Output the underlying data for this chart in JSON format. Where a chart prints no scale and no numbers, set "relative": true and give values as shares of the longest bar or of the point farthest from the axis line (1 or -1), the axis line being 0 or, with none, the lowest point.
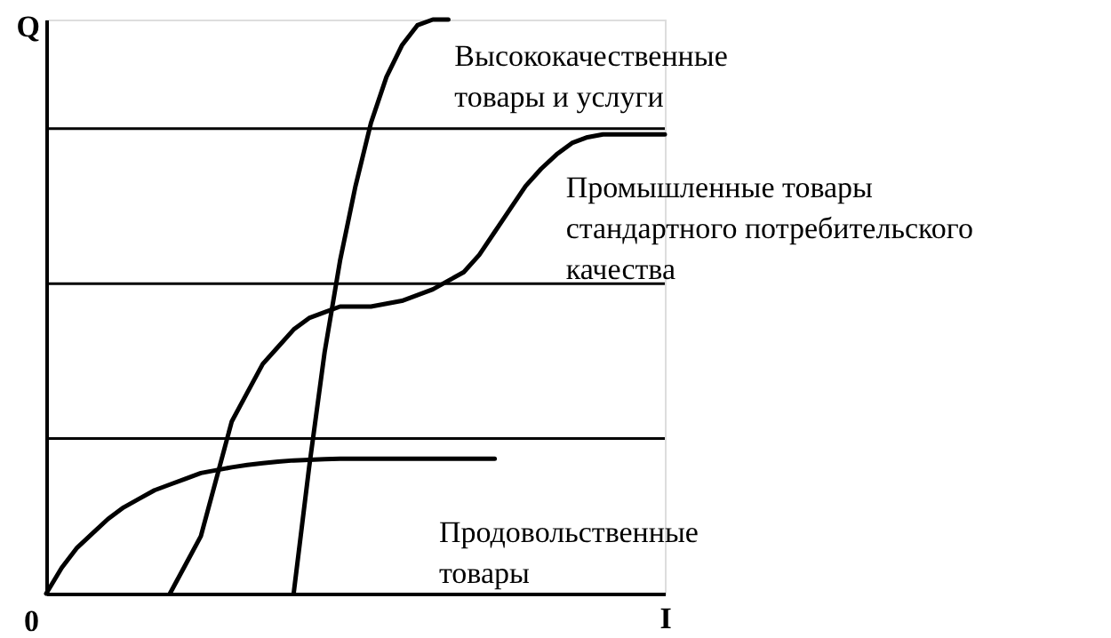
{
  "chart_data": {
    "type": "line",
    "relative": true,
    "xlabel": "I",
    "ylabel": "Q",
    "annotations": [
      "0"
    ],
    "tick_labels": false,
    "marker": "none",
    "line_style": "solid",
    "categories": [
      null,
      null,
      null,
      null,
      null,
      null,
      null,
      null,
      null,
      null,
      null,
      null,
      null,
      null,
      null,
      null,
      null,
      null,
      null,
      null,
      null,
      null,
      null,
      null,
      null,
      null,
      null,
      null,
      null,
      null,
      null,
      null,
      null,
      null,
      null,
      null,
      null,
      null,
      null,
      null,
      null
    ],
    "series": [
      {
        "name": "Продовольственные\nтовары",
        "color": "#000000",
        "values": [
          0,
          0.045,
          0.08,
          0.105,
          0.13,
          0.15,
          0.165,
          0.18,
          0.19,
          0.2,
          0.21,
          0.215,
          0.22,
          0.224,
          0.227,
          0.23,
          0.232,
          0.233,
          0.234,
          0.235,
          0.235,
          0.235,
          0.235,
          0.235,
          0.235,
          0.235,
          0.235,
          0.235,
          0.235,
          0.235,
          null,
          null,
          null,
          null,
          null,
          null,
          null,
          null,
          null,
          null,
          null
        ]
      },
      {
        "name": "Промышленные товары\nстандартного потребительского\nкачества",
        "color": "#000000",
        "values": [
          null,
          null,
          null,
          null,
          null,
          null,
          null,
          null,
          0,
          0.05,
          0.1,
          0.2,
          0.3,
          0.35,
          0.4,
          0.43,
          0.46,
          0.48,
          0.49,
          0.5,
          0.5,
          0.5,
          0.505,
          0.51,
          0.52,
          0.53,
          0.545,
          0.56,
          0.59,
          0.63,
          0.67,
          0.71,
          0.74,
          0.765,
          0.785,
          0.795,
          0.8,
          0.8,
          0.8,
          0.8,
          0.8
        ]
      },
      {
        "name": "Высококачественные\nтовары и услуги",
        "color": "#000000",
        "values": [
          null,
          null,
          null,
          null,
          null,
          null,
          null,
          null,
          null,
          null,
          null,
          null,
          null,
          null,
          null,
          null,
          0,
          0.22,
          0.42,
          0.58,
          0.71,
          0.82,
          0.9,
          0.955,
          0.99,
          1.0,
          1.0,
          null,
          null,
          null,
          null,
          null,
          null,
          null,
          null,
          null,
          null,
          null,
          null,
          null,
          null
        ]
      }
    ],
    "ref_lines": [
      {
        "axis": "y",
        "value": 0.81,
        "color": "#000000"
      },
      {
        "axis": "y",
        "value": 0.54,
        "color": "#000000"
      },
      {
        "axis": "y",
        "value": 0.27,
        "color": "#000000"
      }
    ]
  }
}
